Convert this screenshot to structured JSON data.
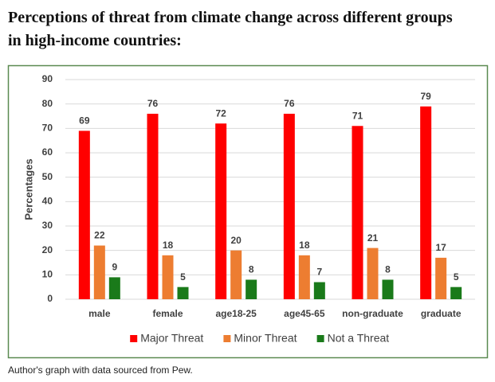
{
  "chart_data": {
    "type": "bar",
    "title": "Perceptions of threat from climate change across different groups in high-income countries:",
    "caption": "Author's graph with data sourced from Pew.",
    "y_label": "Percentages",
    "categories": [
      "male",
      "female",
      "age18-25",
      "age45-65",
      "non-graduate",
      "graduate"
    ],
    "series": [
      {
        "name": "Major Threat",
        "color": "#ff0000",
        "values": [
          69,
          76,
          72,
          76,
          71,
          79
        ]
      },
      {
        "name": "Minor Threat",
        "color": "#ed7d31",
        "values": [
          22,
          18,
          20,
          18,
          21,
          17
        ]
      },
      {
        "name": "Not a Threat",
        "color": "#1a7a1a",
        "values": [
          9,
          5,
          8,
          7,
          8,
          5
        ]
      }
    ],
    "ylim": [
      0,
      90
    ],
    "yticks": [
      0,
      10,
      20,
      30,
      40,
      50,
      60,
      70,
      80,
      90
    ],
    "grid": true,
    "legend": "bottom"
  }
}
